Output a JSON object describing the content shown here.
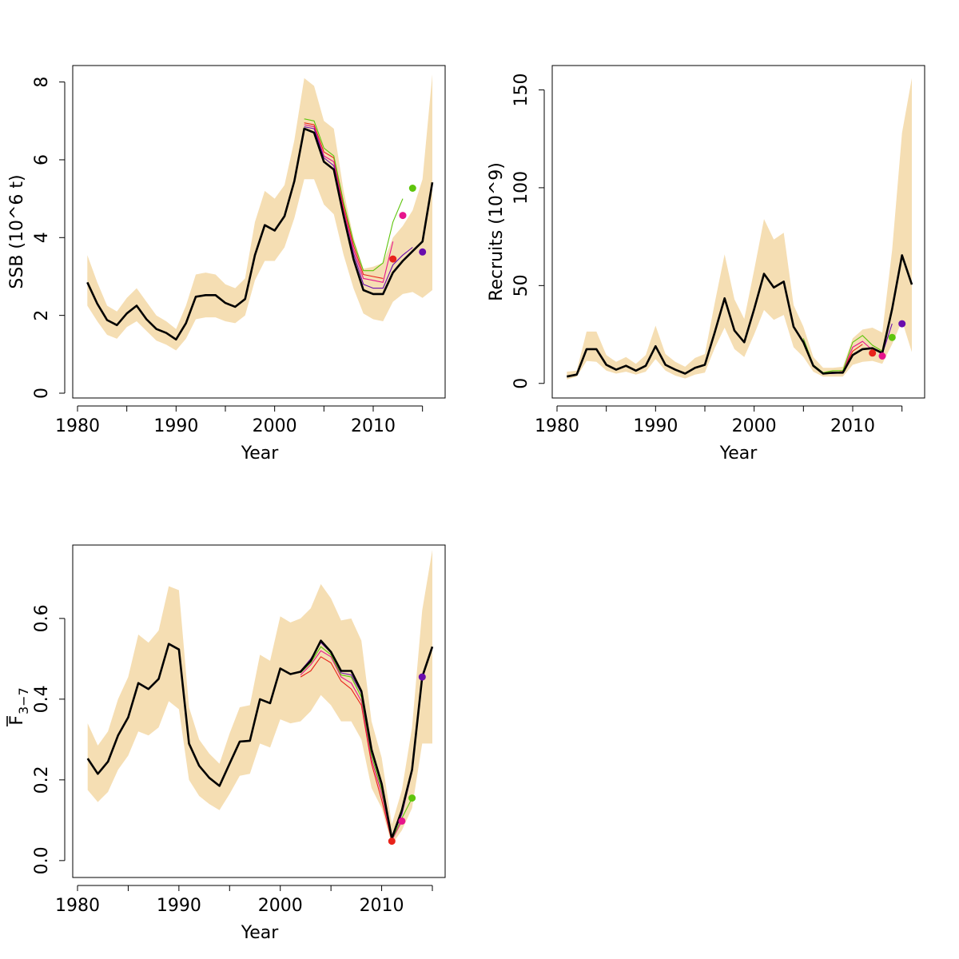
{
  "colors": {
    "band": "#F5DEB3",
    "main": "#000000",
    "retro_2011": "#E8231A",
    "retro_2012": "#E6148C",
    "retro_2013": "#5EC40C",
    "retro_2014": "#6A0DAD"
  },
  "chart_data": [
    {
      "type": "line",
      "id": "ssb",
      "title": "",
      "xlabel": "Year",
      "ylabel": "SSB (10^6 t)",
      "xlim": [
        1980,
        2016
      ],
      "ylim": [
        0,
        8.3
      ],
      "xticks": [
        1980,
        1990,
        2000,
        2010
      ],
      "xtick_labels": [
        "1980",
        "1990",
        "2000",
        "2010"
      ],
      "yticks": [
        0,
        2,
        4,
        6,
        8
      ],
      "ytick_labels": [
        "0",
        "2",
        "4",
        "6",
        "8"
      ],
      "grid": false,
      "band": {
        "x": [
          1981,
          1982,
          1983,
          1984,
          1985,
          1986,
          1987,
          1988,
          1989,
          1990,
          1991,
          1992,
          1993,
          1994,
          1995,
          1996,
          1997,
          1998,
          1999,
          2000,
          2001,
          2002,
          2003,
          2004,
          2005,
          2006,
          2007,
          2008,
          2009,
          2010,
          2011,
          2012,
          2013,
          2014,
          2015,
          2016
        ],
        "upper": [
          3.55,
          2.85,
          2.25,
          2.1,
          2.45,
          2.7,
          2.35,
          2.0,
          1.85,
          1.65,
          2.25,
          3.05,
          3.1,
          3.05,
          2.8,
          2.7,
          2.95,
          4.4,
          5.2,
          5.0,
          5.35,
          6.5,
          8.1,
          7.9,
          7.0,
          6.8,
          5.2,
          4.0,
          3.2,
          3.25,
          3.35,
          4.0,
          4.3,
          4.7,
          5.5,
          8.2
        ],
        "lower": [
          2.25,
          1.85,
          1.5,
          1.4,
          1.7,
          1.85,
          1.6,
          1.35,
          1.25,
          1.1,
          1.4,
          1.9,
          1.95,
          1.95,
          1.85,
          1.8,
          2.0,
          2.9,
          3.4,
          3.4,
          3.75,
          4.5,
          5.5,
          5.5,
          4.85,
          4.6,
          3.55,
          2.7,
          2.05,
          1.9,
          1.85,
          2.35,
          2.55,
          2.6,
          2.45,
          2.65
        ]
      },
      "series": [
        {
          "color_key": "retro_2011",
          "x": [
            2003,
            2004,
            2005,
            2006,
            2007,
            2008,
            2009,
            2010,
            2011
          ],
          "values": [
            6.95,
            6.9,
            6.2,
            6.05,
            4.8,
            3.8,
            3.05,
            3.0,
            2.95
          ]
        },
        {
          "color_key": "retro_2012",
          "x": [
            2003,
            2004,
            2005,
            2006,
            2007,
            2008,
            2009,
            2010,
            2011,
            2012
          ],
          "values": [
            6.9,
            6.85,
            6.1,
            5.95,
            4.7,
            3.7,
            2.95,
            2.9,
            2.85,
            3.9
          ]
        },
        {
          "color_key": "retro_2013",
          "x": [
            2003,
            2004,
            2005,
            2006,
            2007,
            2008,
            2009,
            2010,
            2011,
            2012,
            2013
          ],
          "values": [
            7.05,
            7.0,
            6.3,
            6.1,
            4.9,
            3.9,
            3.15,
            3.15,
            3.35,
            4.4,
            5.0
          ]
        },
        {
          "color_key": "retro_2014",
          "x": [
            2003,
            2004,
            2005,
            2006,
            2007,
            2008,
            2009,
            2010,
            2011,
            2012,
            2013,
            2014
          ],
          "values": [
            6.85,
            6.8,
            6.05,
            5.85,
            4.6,
            3.6,
            2.8,
            2.7,
            2.7,
            3.3,
            3.55,
            3.75
          ]
        },
        {
          "color_key": "main",
          "x": [
            1981,
            1982,
            1983,
            1984,
            1985,
            1986,
            1987,
            1988,
            1989,
            1990,
            1991,
            1992,
            1993,
            1994,
            1995,
            1996,
            1997,
            1998,
            1999,
            2000,
            2001,
            2002,
            2003,
            2004,
            2005,
            2006,
            2007,
            2008,
            2009,
            2010,
            2011,
            2012,
            2013,
            2014,
            2015,
            2016
          ],
          "values": [
            2.85,
            2.3,
            1.88,
            1.75,
            2.05,
            2.25,
            1.9,
            1.65,
            1.55,
            1.38,
            1.8,
            2.48,
            2.52,
            2.52,
            2.32,
            2.22,
            2.42,
            3.55,
            4.32,
            4.18,
            4.55,
            5.45,
            6.8,
            6.7,
            5.95,
            5.75,
            4.55,
            3.45,
            2.65,
            2.55,
            2.55,
            3.1,
            3.4,
            3.65,
            3.9,
            5.42
          ]
        }
      ],
      "points": [
        {
          "x": 2012,
          "y": 3.45,
          "color_key": "retro_2011"
        },
        {
          "x": 2013,
          "y": 4.57,
          "color_key": "retro_2012"
        },
        {
          "x": 2014,
          "y": 5.27,
          "color_key": "retro_2013"
        },
        {
          "x": 2015,
          "y": 3.63,
          "color_key": "retro_2014"
        }
      ]
    },
    {
      "type": "line",
      "id": "recruits",
      "title": "",
      "xlabel": "Year",
      "ylabel": "Recruits (10^9)",
      "xlim": [
        1980,
        2016
      ],
      "ylim": [
        -5,
        160
      ],
      "xticks": [
        1980,
        1990,
        2000,
        2010
      ],
      "xtick_labels": [
        "1980",
        "1990",
        "2000",
        "2010"
      ],
      "yticks": [
        0,
        50,
        100,
        150
      ],
      "ytick_labels": [
        "0",
        "50",
        "100",
        "150"
      ],
      "grid": false,
      "band": {
        "x": [
          1981,
          1982,
          1983,
          1984,
          1985,
          1986,
          1987,
          1988,
          1989,
          1990,
          1991,
          1992,
          1993,
          1994,
          1995,
          1996,
          1997,
          1998,
          1999,
          2000,
          2001,
          2002,
          2003,
          2004,
          2005,
          2006,
          2007,
          2008,
          2009,
          2010,
          2011,
          2012,
          2013,
          2014,
          2015,
          2016
        ],
        "upper": [
          6.0,
          6.5,
          26.5,
          26.5,
          14.5,
          11.0,
          13.5,
          10.0,
          14.5,
          29.5,
          15.0,
          11.0,
          8.5,
          13.0,
          15.0,
          41.0,
          66.0,
          43.0,
          33.0,
          58.0,
          84.0,
          73.5,
          77.0,
          40.0,
          29.0,
          13.5,
          8.0,
          8.0,
          8.5,
          23.0,
          27.5,
          28.5,
          26.0,
          68.0,
          128.0,
          156.0
        ],
        "lower": [
          2.0,
          3.5,
          11.5,
          11.0,
          6.5,
          5.0,
          6.0,
          4.5,
          6.0,
          12.5,
          6.5,
          4.0,
          2.5,
          4.5,
          5.5,
          18.0,
          28.5,
          17.5,
          13.5,
          25.0,
          37.5,
          32.5,
          35.0,
          18.5,
          13.5,
          6.0,
          3.5,
          3.5,
          3.5,
          9.5,
          11.0,
          11.5,
          10.0,
          20.0,
          32.0,
          16.0
        ]
      },
      "series": [
        {
          "color_key": "retro_2011",
          "x": [
            2005,
            2006,
            2007,
            2008,
            2009,
            2010,
            2011
          ],
          "values": [
            22,
            9,
            5,
            5.5,
            6,
            16.5,
            20.0
          ]
        },
        {
          "color_key": "retro_2012",
          "x": [
            2005,
            2006,
            2007,
            2008,
            2009,
            2010,
            2011,
            2012
          ],
          "values": [
            22,
            9,
            5,
            5.5,
            6,
            18.5,
            21.5,
            17.0
          ]
        },
        {
          "color_key": "retro_2013",
          "x": [
            2005,
            2006,
            2007,
            2008,
            2009,
            2010,
            2011,
            2012,
            2013
          ],
          "values": [
            23,
            9.5,
            5.5,
            6.5,
            6.5,
            21,
            24.5,
            19.5,
            16.5
          ]
        },
        {
          "color_key": "retro_2014",
          "x": [
            2005,
            2006,
            2007,
            2008,
            2009,
            2010,
            2011,
            2012,
            2013,
            2014
          ],
          "values": [
            22,
            9,
            5,
            5,
            5.5,
            14.5,
            17.5,
            18.0,
            15.0,
            30.5
          ]
        },
        {
          "color_key": "main",
          "x": [
            1981,
            1982,
            1983,
            1984,
            1985,
            1986,
            1987,
            1988,
            1989,
            1990,
            1991,
            1992,
            1993,
            1994,
            1995,
            1996,
            1997,
            1998,
            1999,
            2000,
            2001,
            2002,
            2003,
            2004,
            2005,
            2006,
            2007,
            2008,
            2009,
            2010,
            2011,
            2012,
            2013,
            2014,
            2015,
            2016
          ],
          "values": [
            3.5,
            4.5,
            17.5,
            17.5,
            9.5,
            7.0,
            9.0,
            6.5,
            9.0,
            19.0,
            9.5,
            7.0,
            5.0,
            8.0,
            9.5,
            26.0,
            43.5,
            27.0,
            21.0,
            38.0,
            56.0,
            49.0,
            52.0,
            29.0,
            21.0,
            9.0,
            5.0,
            5.5,
            5.5,
            14.5,
            17.5,
            18.0,
            15.5,
            38.0,
            65.5,
            50.5
          ]
        }
      ],
      "points": [
        {
          "x": 2012,
          "y": 15.5,
          "color_key": "retro_2011"
        },
        {
          "x": 2013,
          "y": 14.0,
          "color_key": "retro_2012"
        },
        {
          "x": 2014,
          "y": 23.5,
          "color_key": "retro_2013"
        },
        {
          "x": 2015,
          "y": 30.5,
          "color_key": "retro_2014"
        }
      ]
    },
    {
      "type": "line",
      "id": "fbar",
      "title": "",
      "xlabel": "Year",
      "ylabel_main": "F",
      "ylabel_sub": "3−7",
      "xlim": [
        1980,
        2015
      ],
      "ylim": [
        -0.03,
        0.77
      ],
      "xticks": [
        1980,
        1990,
        2000,
        2010
      ],
      "xtick_labels": [
        "1980",
        "1990",
        "2000",
        "2010"
      ],
      "yticks": [
        0.0,
        0.2,
        0.4,
        0.6
      ],
      "ytick_labels": [
        "0.0",
        "0.2",
        "0.4",
        "0.6"
      ],
      "grid": false,
      "band": {
        "x": [
          1981,
          1982,
          1983,
          1984,
          1985,
          1986,
          1987,
          1988,
          1989,
          1990,
          1991,
          1992,
          1993,
          1994,
          1995,
          1996,
          1997,
          1998,
          1999,
          2000,
          2001,
          2002,
          2003,
          2004,
          2005,
          2006,
          2007,
          2008,
          2009,
          2010,
          2011,
          2012,
          2013,
          2014,
          2015
        ],
        "upper": [
          0.34,
          0.285,
          0.32,
          0.4,
          0.455,
          0.56,
          0.54,
          0.57,
          0.68,
          0.67,
          0.38,
          0.3,
          0.265,
          0.24,
          0.315,
          0.38,
          0.385,
          0.51,
          0.495,
          0.605,
          0.59,
          0.6,
          0.625,
          0.685,
          0.65,
          0.595,
          0.6,
          0.545,
          0.345,
          0.255,
          0.09,
          0.175,
          0.33,
          0.62,
          0.77
        ],
        "lower": [
          0.175,
          0.145,
          0.17,
          0.225,
          0.26,
          0.32,
          0.31,
          0.33,
          0.395,
          0.375,
          0.2,
          0.16,
          0.14,
          0.125,
          0.165,
          0.21,
          0.215,
          0.29,
          0.28,
          0.35,
          0.34,
          0.345,
          0.37,
          0.41,
          0.385,
          0.345,
          0.345,
          0.3,
          0.18,
          0.13,
          0.04,
          0.075,
          0.13,
          0.29,
          0.29
        ]
      },
      "series": [
        {
          "color_key": "retro_2011",
          "x": [
            2002,
            2003,
            2004,
            2005,
            2006,
            2007,
            2008,
            2009,
            2010,
            2011
          ],
          "values": [
            0.455,
            0.47,
            0.505,
            0.49,
            0.445,
            0.425,
            0.385,
            0.24,
            0.15,
            0.048
          ]
        },
        {
          "color_key": "retro_2012",
          "x": [
            2002,
            2003,
            2004,
            2005,
            2006,
            2007,
            2008,
            2009,
            2010,
            2011,
            2012
          ],
          "values": [
            0.46,
            0.485,
            0.52,
            0.505,
            0.455,
            0.44,
            0.395,
            0.25,
            0.165,
            0.05,
            0.098
          ]
        },
        {
          "color_key": "retro_2013",
          "x": [
            2002,
            2003,
            2004,
            2005,
            2006,
            2007,
            2008,
            2009,
            2010,
            2011,
            2012,
            2013
          ],
          "values": [
            0.465,
            0.49,
            0.53,
            0.51,
            0.46,
            0.455,
            0.405,
            0.26,
            0.175,
            0.052,
            0.105,
            0.155
          ]
        },
        {
          "color_key": "retro_2014",
          "x": [
            2002,
            2003,
            2004,
            2005,
            2006,
            2007,
            2008,
            2009,
            2010,
            2011,
            2012,
            2013,
            2014
          ],
          "values": [
            0.47,
            0.5,
            0.54,
            0.515,
            0.465,
            0.46,
            0.415,
            0.27,
            0.185,
            0.055,
            0.115,
            0.22,
            0.455
          ]
        },
        {
          "color_key": "main",
          "x": [
            1981,
            1982,
            1983,
            1984,
            1985,
            1986,
            1987,
            1988,
            1989,
            1990,
            1991,
            1992,
            1993,
            1994,
            1995,
            1996,
            1997,
            1998,
            1999,
            2000,
            2001,
            2002,
            2003,
            2004,
            2005,
            2006,
            2007,
            2008,
            2009,
            2010,
            2011,
            2012,
            2013,
            2014,
            2015
          ],
          "values": [
            0.253,
            0.215,
            0.245,
            0.31,
            0.355,
            0.44,
            0.425,
            0.45,
            0.537,
            0.523,
            0.29,
            0.235,
            0.205,
            0.185,
            0.24,
            0.295,
            0.297,
            0.4,
            0.39,
            0.476,
            0.462,
            0.468,
            0.495,
            0.545,
            0.517,
            0.47,
            0.47,
            0.42,
            0.275,
            0.19,
            0.055,
            0.125,
            0.225,
            0.455,
            0.53
          ]
        }
      ],
      "points": [
        {
          "x": 2011,
          "y": 0.048,
          "color_key": "retro_2011"
        },
        {
          "x": 2012,
          "y": 0.098,
          "color_key": "retro_2012"
        },
        {
          "x": 2013,
          "y": 0.155,
          "color_key": "retro_2013"
        },
        {
          "x": 2014,
          "y": 0.455,
          "color_key": "retro_2014"
        }
      ]
    }
  ]
}
